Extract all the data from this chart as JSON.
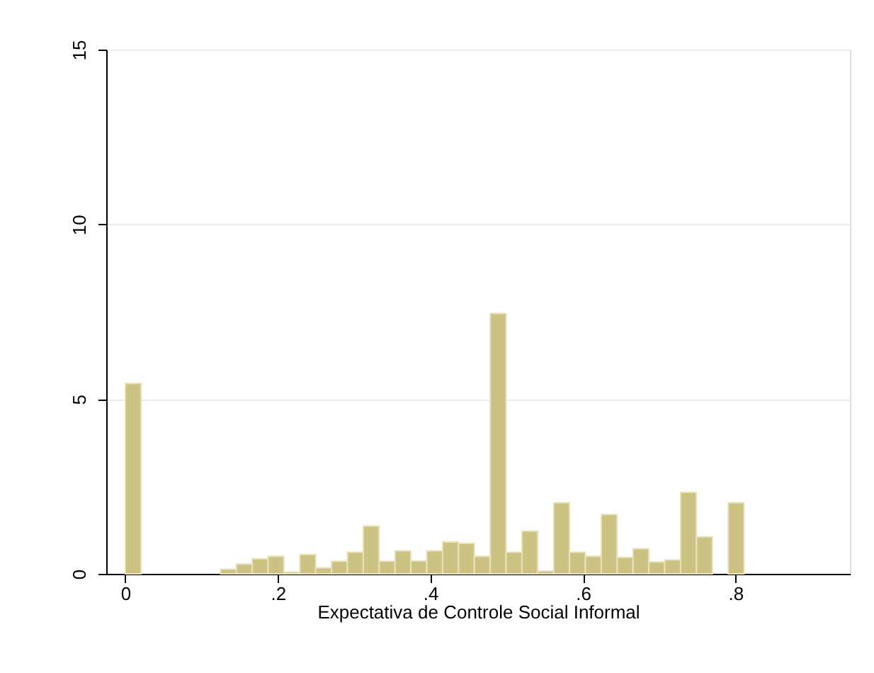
{
  "chart_data": {
    "type": "histogram",
    "xlabel": "Expectativa de Controle Social Informal",
    "bins": [
      0,
      0.0208,
      0.0416,
      0.0624,
      0.0832,
      0.104,
      0.1248,
      0.1456,
      0.1664,
      0.1872,
      0.208,
      0.2288,
      0.2496,
      0.2704,
      0.2912,
      0.312,
      0.3328,
      0.3536,
      0.3744,
      0.3952,
      0.416,
      0.4368,
      0.4576,
      0.4784,
      0.4992,
      0.52,
      0.5408,
      0.5616,
      0.5824,
      0.6032,
      0.624,
      0.6448,
      0.6656,
      0.6864,
      0.7072,
      0.728,
      0.7488,
      0.7696,
      0.7904,
      0.8112
    ],
    "values": [
      5.45,
      0,
      0,
      0,
      0,
      0,
      0.13,
      0.28,
      0.43,
      0.5,
      0.05,
      0.55,
      0.17,
      0.36,
      0.62,
      1.37,
      0.36,
      0.66,
      0.37,
      0.66,
      0.91,
      0.87,
      0.5,
      7.45,
      0.62,
      1.22,
      0.08,
      2.03,
      0.62,
      0.5,
      1.7,
      0.47,
      0.72,
      0.34,
      0.4,
      2.33,
      1.06,
      0,
      2.03
    ],
    "color": "#ccc283",
    "xlim": [
      -0.025,
      0.95
    ],
    "xticks": [
      0,
      {
        "value": 0.2,
        "label": ".2"
      },
      {
        "value": 0.4,
        "label": ".4"
      },
      {
        "value": 0.6,
        "label": ".6"
      },
      {
        "value": 0.8,
        "label": ".8"
      }
    ],
    "ylim": [
      0,
      15
    ],
    "yticks": [
      0,
      5,
      10,
      15
    ],
    "grid": "y"
  }
}
